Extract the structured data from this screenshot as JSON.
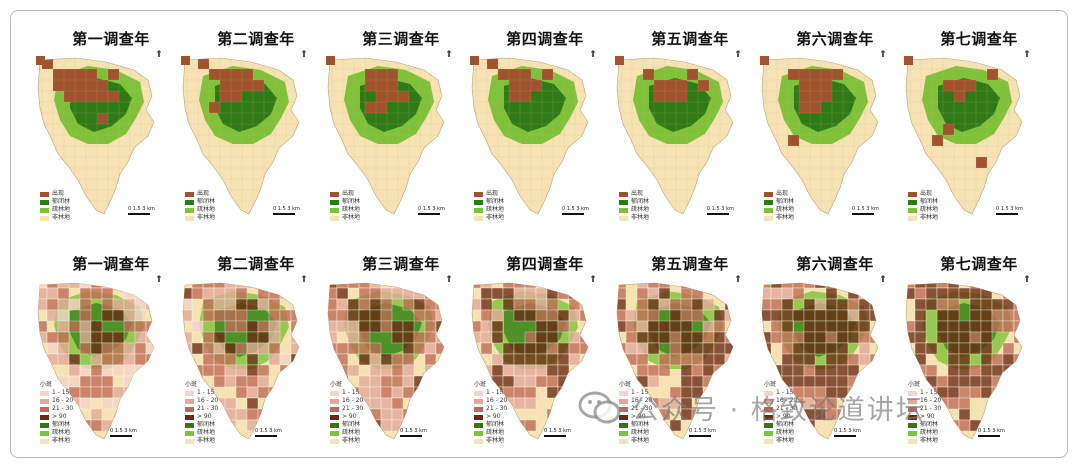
{
  "colors": {
    "background": "#ffffff",
    "base_land": "#f6e2b2",
    "forest_dark": "#2f7a16",
    "forest_light": "#7fc23a",
    "sighting_brown": "#a0532c",
    "grid_line": "#c9b58c"
  },
  "top_row": {
    "titles": [
      "第一调查年",
      "第二调查年",
      "第三调查年",
      "第四调查年",
      "第五调查年",
      "第六调查年",
      "第七调查年"
    ],
    "legend": [
      {
        "label": "出现",
        "color": "#a0532c"
      },
      {
        "label": "郁闭林",
        "color": "#2f7a16"
      },
      {
        "label": "疏林地",
        "color": "#7fc23a"
      },
      {
        "label": "非林地",
        "color": "#f6e2b2"
      }
    ]
  },
  "bottom_row": {
    "titles": [
      "第一调查年",
      "第二调查年",
      "第三调查年",
      "第四调查年",
      "第五调查年",
      "第六调查年",
      "第七调查年"
    ],
    "legend_header": "小斑",
    "legend": [
      {
        "label": "1 - 15",
        "color": "#f4d4c8"
      },
      {
        "label": "16 - 20",
        "color": "#e2a89a"
      },
      {
        "label": "21 - 30",
        "color": "#c06a55"
      },
      {
        "label": "> 90",
        "color": "#6b2a14"
      },
      {
        "label": "郁闭林",
        "color": "#2f7a16"
      },
      {
        "label": "疏林地",
        "color": "#7fc23a"
      },
      {
        "label": "非林地",
        "color": "#f6e2b2"
      }
    ]
  },
  "scale_label": "0  1.5  3 km",
  "north_label": "N",
  "watermark": "公众号 · 格致论道讲坛"
}
